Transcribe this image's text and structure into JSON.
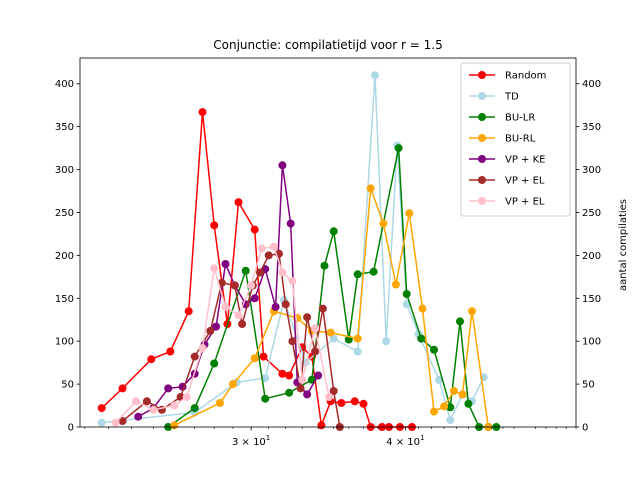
{
  "chart_data": {
    "type": "line",
    "title": "Conjunctie: compilatietijd voor r = 1.5",
    "xlabel": "",
    "ylabel": "",
    "y2label": "aantal compilaties",
    "xscale": "log",
    "xlim": [
      21.8,
      55.0
    ],
    "ylim": [
      0,
      430
    ],
    "y2lim": [
      0,
      430
    ],
    "x_major_ticks": [
      {
        "value": 30,
        "label": "3 × 10^1"
      },
      {
        "value": 40,
        "label": "4 × 10^1"
      }
    ],
    "y_ticks": [
      0,
      50,
      100,
      150,
      200,
      250,
      300,
      350,
      400
    ],
    "y2_ticks": [
      0,
      50,
      100,
      150,
      200,
      250,
      300,
      350,
      400
    ],
    "grid": false,
    "legend_position": "top-right",
    "series": [
      {
        "name": "Random",
        "color": "#ff0000",
        "axis": "left",
        "x": [
          22.7,
          23.6,
          24.9,
          25.8,
          26.7,
          27.4,
          28.0,
          28.7,
          29.3,
          30.2,
          30.7,
          31.8,
          32.2,
          33.0,
          33.6,
          34.2,
          34.8,
          35.5,
          36.4,
          37.0,
          37.5,
          38.3,
          38.8,
          39.6,
          40.5
        ],
        "y": [
          22,
          45,
          79,
          88,
          135,
          367,
          235,
          120,
          262,
          230,
          82,
          62,
          60,
          93,
          82,
          2,
          30,
          28,
          30,
          27,
          0,
          0,
          0,
          0,
          0
        ]
      },
      {
        "name": "TD",
        "color": "#add8e6",
        "axis": "left",
        "x": [
          22.7,
          27.0,
          29.2,
          30.8,
          31.9,
          33.2,
          35.0,
          36.6,
          37.8,
          38.6,
          39.4,
          40.1,
          41.0,
          42.6,
          43.5,
          44.5,
          45.3,
          46.3
        ],
        "y": [
          5,
          17,
          52,
          57,
          148,
          75,
          103,
          88,
          410,
          100,
          328,
          143,
          108,
          55,
          8,
          38,
          30,
          58
        ]
      },
      {
        "name": "BU-LR",
        "color": "#008000",
        "axis": "left",
        "x": [
          25.7,
          27.0,
          28.0,
          29.7,
          30.8,
          32.2,
          33.6,
          34.4,
          35.0,
          36.0,
          36.6,
          37.7,
          39.5,
          40.1,
          41.2,
          42.2,
          43.5,
          44.3,
          45.0,
          45.9,
          46.7,
          47.4
        ],
        "y": [
          0,
          22,
          74,
          182,
          33,
          40,
          55,
          188,
          228,
          102,
          178,
          181,
          325,
          155,
          103,
          90,
          23,
          123,
          27,
          0,
          0,
          0
        ]
      },
      {
        "name": "BU-RL",
        "color": "#ffa500",
        "axis": "left",
        "x": [
          26.0,
          28.3,
          29.0,
          30.2,
          31.3,
          32.7,
          33.6,
          34.8,
          36.6,
          37.5,
          38.4,
          39.3,
          40.3,
          41.3,
          42.2,
          43.0,
          43.8,
          44.5,
          45.3,
          46.7
        ],
        "y": [
          2,
          28,
          50,
          80,
          135,
          127,
          112,
          110,
          103,
          278,
          237,
          166,
          249,
          138,
          18,
          24,
          42,
          38,
          135,
          0
        ]
      },
      {
        "name": "VP + KE",
        "color": "#800080",
        "axis": "left",
        "x": [
          24.3,
          25.0,
          25.7,
          26.4,
          27.0,
          27.5,
          28.1,
          28.6,
          29.1,
          29.7,
          30.2,
          30.8,
          31.4,
          31.8,
          32.3,
          32.7,
          33.3,
          34.0
        ],
        "y": [
          12,
          22,
          45,
          47,
          62,
          96,
          117,
          190,
          165,
          143,
          150,
          184,
          140,
          305,
          237,
          52,
          38,
          60
        ]
      },
      {
        "name": "VP + EL",
        "color": "#a52a2a",
        "axis": "left",
        "x": [
          23.6,
          24.7,
          25.4,
          26.3,
          27.0,
          27.8,
          28.4,
          29.1,
          29.5,
          30.1,
          30.5,
          31.0,
          31.6,
          32.0,
          32.4,
          32.9,
          33.3,
          33.8,
          34.3,
          35.0,
          35.4
        ],
        "y": [
          7,
          30,
          20,
          35,
          82,
          112,
          168,
          165,
          120,
          165,
          180,
          200,
          202,
          143,
          100,
          45,
          128,
          88,
          138,
          42,
          0
        ]
      },
      {
        "name": "VP + EL",
        "color": "#ffc0cb",
        "axis": "left",
        "x": [
          23.3,
          24.2,
          25.0,
          26.0,
          26.6,
          27.4,
          28.0,
          28.6,
          29.3,
          30.0,
          30.6,
          31.3,
          31.8,
          32.4,
          33.0,
          33.8,
          34.7
        ],
        "y": [
          5,
          30,
          20,
          25,
          35,
          92,
          185,
          140,
          130,
          165,
          208,
          210,
          180,
          170,
          55,
          115,
          35
        ]
      }
    ]
  }
}
